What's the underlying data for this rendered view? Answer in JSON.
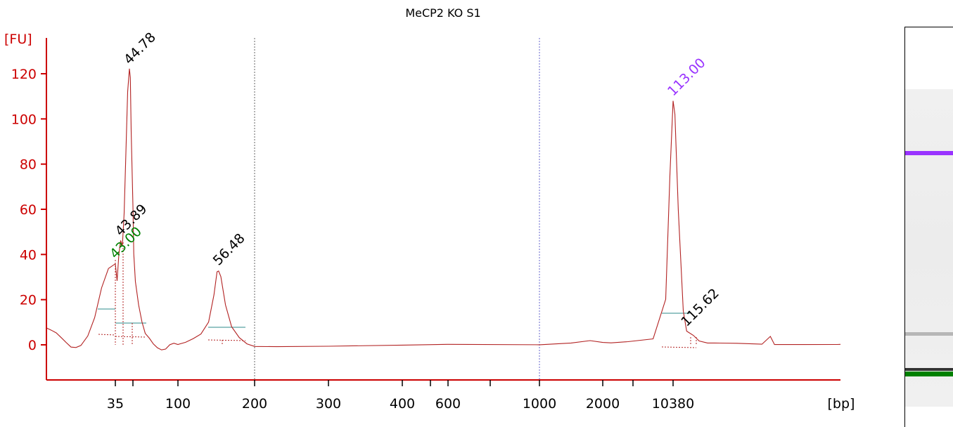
{
  "chart_data": {
    "type": "line",
    "title": "MeCP2 KO S1",
    "ylabel": "[FU]",
    "xlabel": "[bp]",
    "ylim": [
      -16,
      138
    ],
    "y_ticks": [
      0,
      20,
      40,
      60,
      80,
      100,
      120
    ],
    "x_tick_labels": [
      "35",
      "100",
      "200",
      "300",
      "400",
      "600",
      "1000",
      "2000",
      "10380"
    ],
    "series": [
      {
        "points_bp": [
          [
            "start",
            7.5
          ],
          [
            "start",
            6.5
          ],
          [
            "start",
            5
          ],
          [
            "start",
            3
          ],
          [
            "start",
            1
          ],
          [
            "start",
            -1
          ],
          [
            "start",
            -1.5
          ],
          [
            30,
            0
          ],
          [
            31,
            4
          ],
          [
            32,
            12
          ],
          [
            33,
            25
          ],
          [
            34,
            34
          ],
          [
            35,
            36
          ],
          [
            36,
            28
          ],
          [
            37,
            40
          ],
          [
            38,
            46
          ],
          [
            39,
            44
          ],
          [
            40,
            58
          ],
          [
            41,
            85
          ],
          [
            42,
            112
          ],
          [
            43,
            122
          ],
          [
            43.5,
            118
          ],
          [
            44,
            95
          ],
          [
            45,
            62
          ],
          [
            46,
            40
          ],
          [
            48,
            28
          ],
          [
            52,
            18
          ],
          [
            56,
            10
          ],
          [
            60,
            5
          ],
          [
            65,
            3
          ],
          [
            70,
            0.5
          ],
          [
            75,
            -1.5
          ],
          [
            80,
            -2.5
          ],
          [
            85,
            -1.5
          ],
          [
            90,
            0
          ],
          [
            95,
            0.5
          ],
          [
            100,
            0.2
          ],
          [
            110,
            1
          ],
          [
            120,
            2.5
          ],
          [
            130,
            5
          ],
          [
            140,
            10
          ],
          [
            147,
            22
          ],
          [
            151,
            32
          ],
          [
            153,
            33
          ],
          [
            156,
            30
          ],
          [
            162,
            18
          ],
          [
            170,
            8
          ],
          [
            180,
            3
          ],
          [
            190,
            0.5
          ],
          [
            200,
            -0.8
          ],
          [
            230,
            -0.6
          ],
          [
            300,
            -0.5
          ],
          [
            400,
            -0.4
          ],
          [
            600,
            0
          ],
          [
            1000,
            0
          ],
          [
            1500,
            0.5
          ],
          [
            1800,
            1.5
          ],
          [
            2000,
            1
          ],
          [
            3000,
            1
          ],
          [
            5000,
            1.5
          ],
          [
            8000,
            3
          ],
          [
            9500,
            20
          ],
          [
            10000,
            75
          ],
          [
            10380,
            108
          ],
          [
            10600,
            102
          ],
          [
            11000,
            60
          ],
          [
            11600,
            15
          ],
          [
            12000,
            6
          ],
          [
            12800,
            4
          ],
          [
            13500,
            1.5
          ],
          [
            14500,
            1
          ],
          [
            16000,
            0.5
          ],
          [
            18000,
            0.5
          ],
          [
            21000,
            0.5
          ],
          [
            22000,
            4
          ],
          [
            22500,
            0.5
          ],
          [
            30000,
            0.5
          ],
          [
            "end",
            0.5
          ]
        ]
      }
    ],
    "peaks": [
      {
        "label": "44.78",
        "bp": 43,
        "fu": 122,
        "color": "#000000"
      },
      {
        "label": "43.89",
        "bp": 38,
        "fu": 46,
        "color": "#000000"
      },
      {
        "label": "43.00",
        "bp": 35,
        "fu": 36,
        "color": "#008000"
      },
      {
        "label": "56.48",
        "bp": 153,
        "fu": 33,
        "color": "#000000"
      },
      {
        "label": "113.00",
        "bp": 10380,
        "fu": 108,
        "color": "#9933ff"
      },
      {
        "label": "115.62",
        "bp": 12000,
        "fu": 6,
        "color": "#000000"
      }
    ],
    "grid": false
  },
  "colors": {
    "axis": "#cc0000",
    "trace": "#b22222",
    "upper_marker": "#9933ff",
    "lower_marker": "#008000"
  },
  "gel": {
    "bands": [
      {
        "name": "upper-marker",
        "color": "#9933ff"
      },
      {
        "name": "faint-band",
        "color": "#888888"
      },
      {
        "name": "lower-marker",
        "color": "#008000"
      }
    ]
  }
}
